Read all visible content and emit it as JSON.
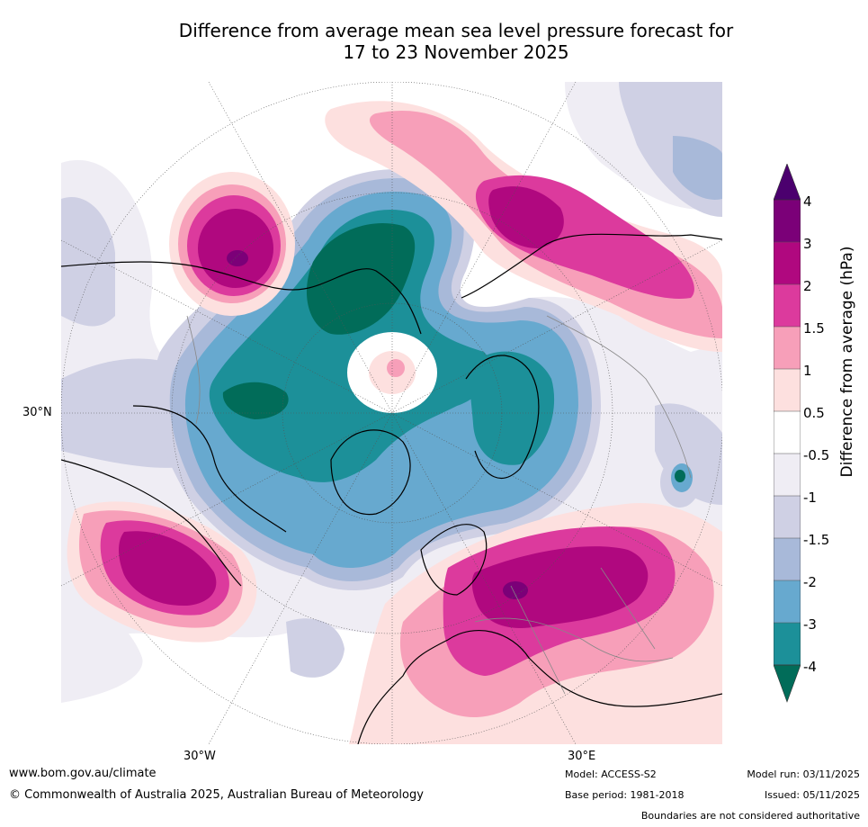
{
  "title": {
    "line1": "Difference from average mean sea level pressure forecast for",
    "line2": "17 to 23 November 2025"
  },
  "axis_labels": {
    "lat_30n": "30°N",
    "lon_30w": "30°W",
    "lon_30e": "30°E"
  },
  "colorbar": {
    "title": "Difference from average (hPa)",
    "ticks": [
      "4",
      "3",
      "2",
      "1.5",
      "1",
      "0.5",
      "-0.5",
      "-1",
      "-1.5",
      "-2",
      "-3",
      "-4"
    ],
    "colors": {
      "above_4": "#4b006e",
      "3_to_4": "#7b0078",
      "2_to_3": "#b0087f",
      "1.5_to_2": "#dc3a9d",
      "1_to_1.5": "#f79fb9",
      "0.5_to_1": "#fde0df",
      "neutral": "#ffffff",
      "m1_to_m0.5": "#efedf4",
      "m1.5_to_m1": "#cfd0e4",
      "m2_to_m1.5": "#a8b9d9",
      "m3_to_m2": "#67a9cf",
      "m4_to_m3": "#1c9099",
      "below_m4": "#016c59"
    }
  },
  "footer": {
    "website": "www.bom.gov.au/climate",
    "copyright": "© Commonwealth of Australia 2025, Australian Bureau of Meteorology",
    "model": "Model: ACCESS-S2",
    "base_period": "Base period: 1981-2018",
    "model_run": "Model run: 03/11/2025",
    "issued": "Issued: 05/11/2025",
    "disclaimer": "Boundaries are not considered authoritative"
  }
}
